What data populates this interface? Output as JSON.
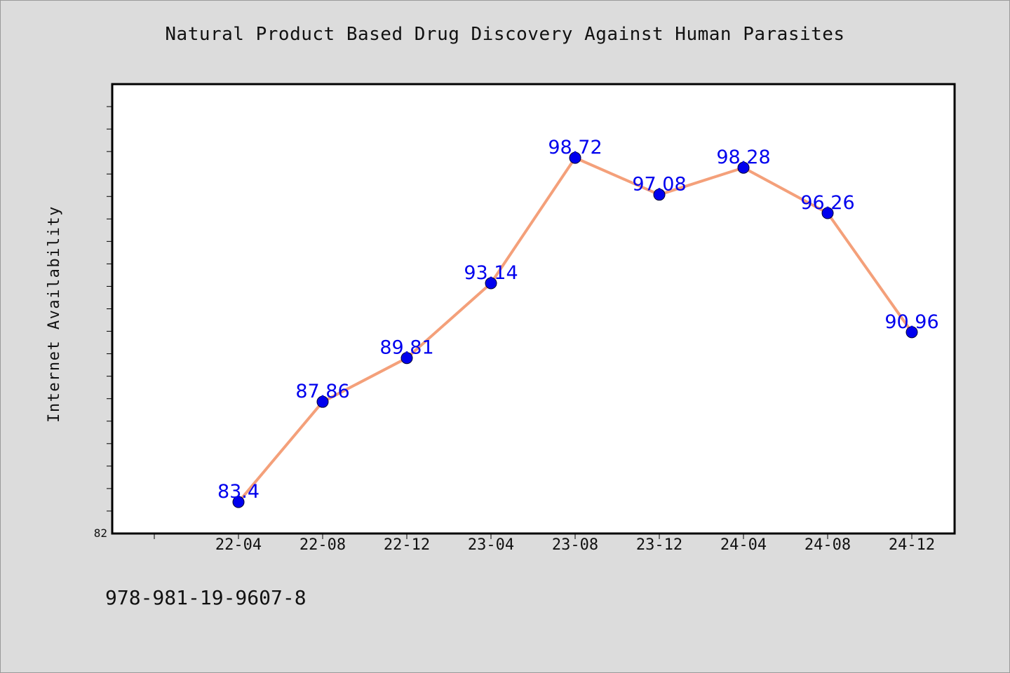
{
  "chart_data": {
    "type": "line",
    "title": "Natural Product Based Drug Discovery Against Human Parasites",
    "xlabel": "",
    "ylabel": "Internet Availability",
    "categories": [
      "22-04",
      "22-08",
      "22-12",
      "23-04",
      "23-08",
      "23-12",
      "24-04",
      "24-08",
      "24-12"
    ],
    "series": [
      {
        "values": [
          83.4,
          87.86,
          89.81,
          93.14,
          98.72,
          97.08,
          98.28,
          96.26,
          90.96
        ],
        "data_labels": [
          "83.4",
          "87.86",
          "89.81",
          "93.14",
          "98.72",
          "97.08",
          "98.28",
          "96.26",
          "90.96"
        ],
        "line_color": "#f4a07a",
        "marker_color": "#0000ee",
        "label_color": "#0000ee"
      }
    ],
    "ylim": [
      82,
      102
    ],
    "yticklabels": [
      "82"
    ],
    "grid": false,
    "legend": "none"
  },
  "footer": {
    "text": "978-981-19-9607-8"
  }
}
